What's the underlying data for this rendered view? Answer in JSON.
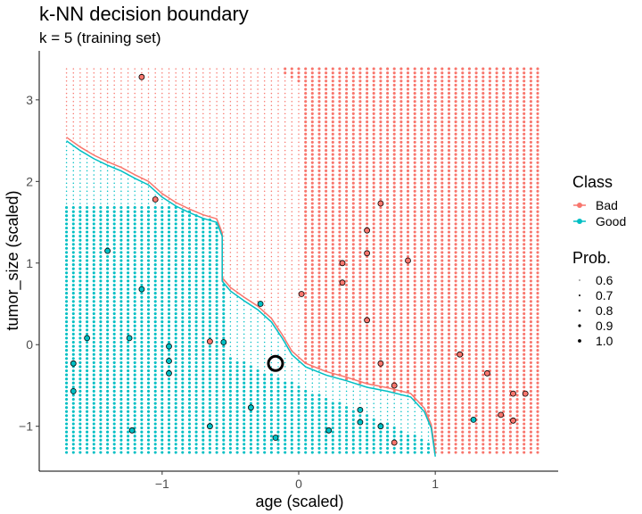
{
  "chart_data": {
    "type": "scatter",
    "title": "k-NN decision boundary",
    "subtitle": "k = 5 (training set)",
    "xlabel": "age (scaled)",
    "ylabel": "tumor_size (scaled)",
    "xlim": [
      -1.9,
      1.9
    ],
    "ylim": [
      -1.55,
      3.6
    ],
    "xticks": [
      -1,
      0,
      1
    ],
    "yticks": [
      -1,
      0,
      1,
      2,
      3
    ],
    "grid": false,
    "colors": {
      "Bad": "#F8766D",
      "Good": "#00BFC4"
    },
    "legend": {
      "position": "right",
      "class_title": "Class",
      "class_entries": [
        "Bad",
        "Good"
      ],
      "prob_title": "Prob.",
      "prob_entries": [
        "0.6",
        "0.7",
        "0.8",
        "0.9",
        "1.0"
      ]
    },
    "boundary": [
      [
        -1.7,
        2.52
      ],
      [
        -1.6,
        2.4
      ],
      [
        -1.5,
        2.3
      ],
      [
        -1.4,
        2.22
      ],
      [
        -1.3,
        2.15
      ],
      [
        -1.2,
        2.06
      ],
      [
        -1.1,
        1.98
      ],
      [
        -1.0,
        1.83
      ],
      [
        -0.9,
        1.72
      ],
      [
        -0.8,
        1.64
      ],
      [
        -0.7,
        1.57
      ],
      [
        -0.6,
        1.52
      ],
      [
        -0.56,
        1.35
      ],
      [
        -0.56,
        0.8
      ],
      [
        -0.5,
        0.68
      ],
      [
        -0.4,
        0.56
      ],
      [
        -0.3,
        0.45
      ],
      [
        -0.2,
        0.3
      ],
      [
        -0.12,
        0.1
      ],
      [
        -0.05,
        -0.1
      ],
      [
        0.05,
        -0.25
      ],
      [
        0.2,
        -0.35
      ],
      [
        0.35,
        -0.42
      ],
      [
        0.5,
        -0.5
      ],
      [
        0.65,
        -0.55
      ],
      [
        0.82,
        -0.62
      ],
      [
        0.92,
        -0.8
      ],
      [
        0.97,
        -1.0
      ],
      [
        1.0,
        -1.35
      ]
    ],
    "grid_prob_regions": {
      "good_strong_y_below": 1.7,
      "good_strong_x_below": -0.5,
      "bad_strong_x_above": 0.05
    },
    "points": [
      {
        "x": -1.15,
        "y": 3.28,
        "class": "Bad"
      },
      {
        "x": -1.05,
        "y": 1.78,
        "class": "Bad"
      },
      {
        "x": 0.6,
        "y": 1.73,
        "class": "Bad"
      },
      {
        "x": 0.5,
        "y": 1.4,
        "class": "Bad"
      },
      {
        "x": 0.5,
        "y": 1.12,
        "class": "Bad"
      },
      {
        "x": 0.8,
        "y": 1.03,
        "class": "Bad"
      },
      {
        "x": 0.32,
        "y": 1.0,
        "class": "Bad"
      },
      {
        "x": 0.32,
        "y": 0.76,
        "class": "Bad"
      },
      {
        "x": 0.02,
        "y": 0.62,
        "class": "Bad"
      },
      {
        "x": 0.5,
        "y": 0.3,
        "class": "Bad"
      },
      {
        "x": -0.65,
        "y": 0.04,
        "class": "Bad"
      },
      {
        "x": 1.18,
        "y": -0.12,
        "class": "Bad"
      },
      {
        "x": 0.6,
        "y": -0.23,
        "class": "Bad"
      },
      {
        "x": 1.38,
        "y": -0.35,
        "class": "Bad"
      },
      {
        "x": 0.7,
        "y": -0.5,
        "class": "Bad"
      },
      {
        "x": 1.57,
        "y": -0.6,
        "class": "Bad"
      },
      {
        "x": 1.66,
        "y": -0.6,
        "class": "Bad"
      },
      {
        "x": 1.48,
        "y": -0.86,
        "class": "Bad"
      },
      {
        "x": 1.57,
        "y": -0.93,
        "class": "Bad"
      },
      {
        "x": 0.7,
        "y": -1.2,
        "class": "Bad"
      },
      {
        "x": -1.4,
        "y": 1.15,
        "class": "Good"
      },
      {
        "x": -1.15,
        "y": 0.68,
        "class": "Good"
      },
      {
        "x": -0.28,
        "y": 0.5,
        "class": "Good"
      },
      {
        "x": -1.55,
        "y": 0.08,
        "class": "Good"
      },
      {
        "x": -1.24,
        "y": 0.08,
        "class": "Good"
      },
      {
        "x": -0.55,
        "y": 0.03,
        "class": "Good"
      },
      {
        "x": -0.95,
        "y": -0.02,
        "class": "Good"
      },
      {
        "x": -1.65,
        "y": -0.23,
        "class": "Good"
      },
      {
        "x": -0.95,
        "y": -0.2,
        "class": "Good"
      },
      {
        "x": -0.95,
        "y": -0.35,
        "class": "Good"
      },
      {
        "x": -1.65,
        "y": -0.57,
        "class": "Good"
      },
      {
        "x": -0.35,
        "y": -0.77,
        "class": "Good"
      },
      {
        "x": 0.45,
        "y": -0.8,
        "class": "Good"
      },
      {
        "x": 1.28,
        "y": -0.92,
        "class": "Good"
      },
      {
        "x": 0.45,
        "y": -0.95,
        "class": "Good"
      },
      {
        "x": -0.65,
        "y": -1.0,
        "class": "Good"
      },
      {
        "x": 0.6,
        "y": -1.0,
        "class": "Good"
      },
      {
        "x": -1.22,
        "y": -1.05,
        "class": "Good"
      },
      {
        "x": 0.22,
        "y": -1.05,
        "class": "Good"
      },
      {
        "x": -0.17,
        "y": -1.14,
        "class": "Good"
      }
    ],
    "highlight": {
      "x": -0.17,
      "y": -0.23
    }
  }
}
